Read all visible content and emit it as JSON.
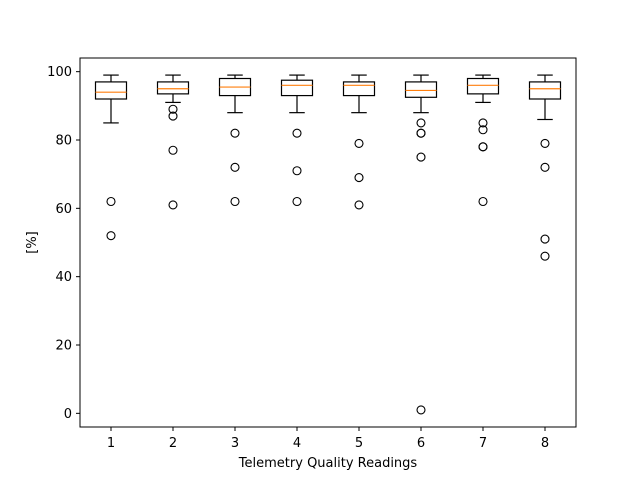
{
  "chart_data": {
    "type": "boxplot",
    "xlabel": "Telemetry Quality Readings",
    "ylabel": "[%]",
    "ylim": [
      -4,
      104
    ],
    "yticks": [
      0,
      20,
      40,
      60,
      80,
      100
    ],
    "categories": [
      "1",
      "2",
      "3",
      "4",
      "5",
      "6",
      "7",
      "8"
    ],
    "boxes": [
      {
        "whisker_low": 85,
        "q1": 92,
        "median": 94,
        "q3": 97,
        "whisker_high": 99,
        "outliers": [
          62,
          52
        ]
      },
      {
        "whisker_low": 91,
        "q1": 93.5,
        "median": 95,
        "q3": 97,
        "whisker_high": 99,
        "outliers": [
          89,
          87,
          77,
          61
        ]
      },
      {
        "whisker_low": 88,
        "q1": 93,
        "median": 95.5,
        "q3": 98,
        "whisker_high": 99,
        "outliers": [
          82,
          72,
          62
        ]
      },
      {
        "whisker_low": 88,
        "q1": 93,
        "median": 96,
        "q3": 97.5,
        "whisker_high": 99,
        "outliers": [
          82,
          71,
          62
        ]
      },
      {
        "whisker_low": 88,
        "q1": 93,
        "median": 96,
        "q3": 97,
        "whisker_high": 99,
        "outliers": [
          79,
          69,
          61
        ]
      },
      {
        "whisker_low": 88,
        "q1": 92.5,
        "median": 94.5,
        "q3": 97,
        "whisker_high": 99,
        "outliers": [
          85,
          82,
          82,
          75,
          1
        ]
      },
      {
        "whisker_low": 91,
        "q1": 93.5,
        "median": 96,
        "q3": 98,
        "whisker_high": 99,
        "outliers": [
          85,
          83,
          78,
          78,
          62
        ]
      },
      {
        "whisker_low": 86,
        "q1": 92,
        "median": 95,
        "q3": 97,
        "whisker_high": 99,
        "outliers": [
          79,
          72,
          51,
          46
        ]
      }
    ],
    "colors": {
      "box": "#000000",
      "median": "#ff7f0e",
      "outlier_edge": "#000000",
      "background": "#ffffff"
    },
    "grid": false,
    "legend": "none"
  }
}
